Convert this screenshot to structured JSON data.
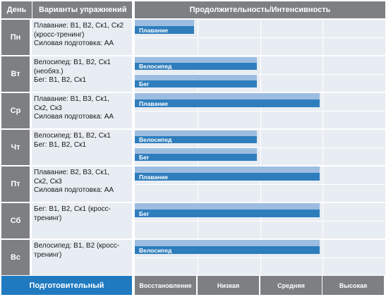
{
  "headers": {
    "day": "День",
    "exercises": "Варианты упражнений",
    "duration": "Продолжительность/Интенсивность"
  },
  "chart_data": {
    "type": "bar",
    "orientation": "horizontal",
    "categories": [
      "Пн",
      "Вт",
      "Ср",
      "Чт",
      "Пт",
      "Сб",
      "Вс"
    ],
    "x_levels": [
      "Восстановление",
      "Низкая",
      "Средняя",
      "Высокая"
    ],
    "xlim": [
      0,
      4
    ],
    "days": [
      {
        "day": "Пн",
        "exercises": "Плавание: В1, В2, Ск1, Ск2\n(кросс-тренинг)\nСиловая подготовка: АА",
        "bars": [
          {
            "label": "Плавание",
            "value": 0.95
          }
        ]
      },
      {
        "day": "Вт",
        "exercises": "Велосипед: В1, В2, Ск1\n(необяз.)\nБег: В1, В2, Ск1",
        "bars": [
          {
            "label": "Велосипед",
            "value": 1.95
          },
          {
            "label": "Бег",
            "value": 1.95
          }
        ]
      },
      {
        "day": "Ср",
        "exercises": "Плавание: В1, В3, Ск1,\nСк2, Ск3\nСиловая подготовка: АА",
        "bars": [
          {
            "label": "Плавание",
            "value": 2.95
          }
        ]
      },
      {
        "day": "Чт",
        "exercises": "Велосипед: В1, В2, Ск1\nБег: В1, В2, Ск1",
        "bars": [
          {
            "label": "Велосипед",
            "value": 1.95
          },
          {
            "label": "Бег",
            "value": 1.95
          }
        ]
      },
      {
        "day": "Пт",
        "exercises": "Плавание: В2, В3, Ск1,\nСк2, Ск3\nСиловая подготовка: АА",
        "bars": [
          {
            "label": "Плавание",
            "value": 2.95
          }
        ]
      },
      {
        "day": "Сб",
        "exercises": "Бег: В1, В2, Ск1 (кросс-\nтренинг)",
        "bars": [
          {
            "label": "Бег",
            "value": 2.95
          }
        ]
      },
      {
        "day": "Вс",
        "exercises": "Велосипед: В1, В2 (кросс-\nтренинг)",
        "bars": [
          {
            "label": "Велосипед",
            "value": 2.95
          }
        ]
      }
    ]
  },
  "footer": {
    "label": "Подготовительный"
  },
  "colors": {
    "header_gray": "#7d7f82",
    "cell_bg": "#e8edf3",
    "bar_light": "#9cbde0",
    "bar_dark": "#2e7dbd",
    "footer_blue": "#1f7ac0"
  }
}
